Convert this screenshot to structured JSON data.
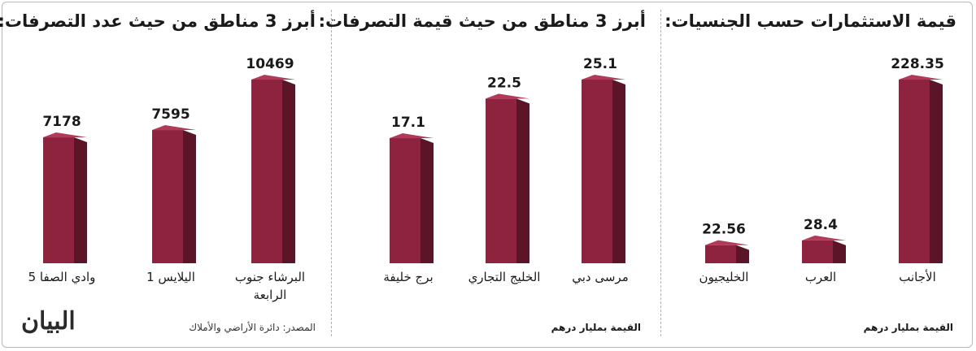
{
  "colors": {
    "bar_front": "#8e2340",
    "bar_side": "#5c1428",
    "bar_top": "#b03a58"
  },
  "brand": {
    "logo": "البيان"
  },
  "chart_data": [
    {
      "type": "bar",
      "title": "قيمة الاستثمارات حسب الجنسيات:",
      "unit_note": "القيمة بمليار درهم",
      "categories": [
        "الأجانب",
        "العرب",
        "الخليجيون"
      ],
      "values": [
        228.35,
        28.4,
        22.56
      ],
      "value_labels": [
        "228.35",
        "28.4",
        "22.56"
      ]
    },
    {
      "type": "bar",
      "title": "أبرز 3 مناطق من حيث قيمة التصرفات:",
      "unit_note": "القيمة بمليار درهم",
      "categories": [
        "مرسى دبي",
        "الخليج التجاري",
        "برج خليفة"
      ],
      "values": [
        25.1,
        22.5,
        17.1
      ],
      "value_labels": [
        "25.1",
        "22.5",
        "17.1"
      ]
    },
    {
      "type": "bar",
      "title": "أبرز 3 مناطق من حيث عدد التصرفات:",
      "source_note": "المصدر: دائرة الأراضي والأملاك",
      "categories": [
        "البرشاء جنوب الرابعة",
        "اليلايس 1",
        "وادي الصفا 5"
      ],
      "values": [
        10469,
        7595,
        7178
      ],
      "value_labels": [
        "10469",
        "7595",
        "7178"
      ]
    }
  ]
}
